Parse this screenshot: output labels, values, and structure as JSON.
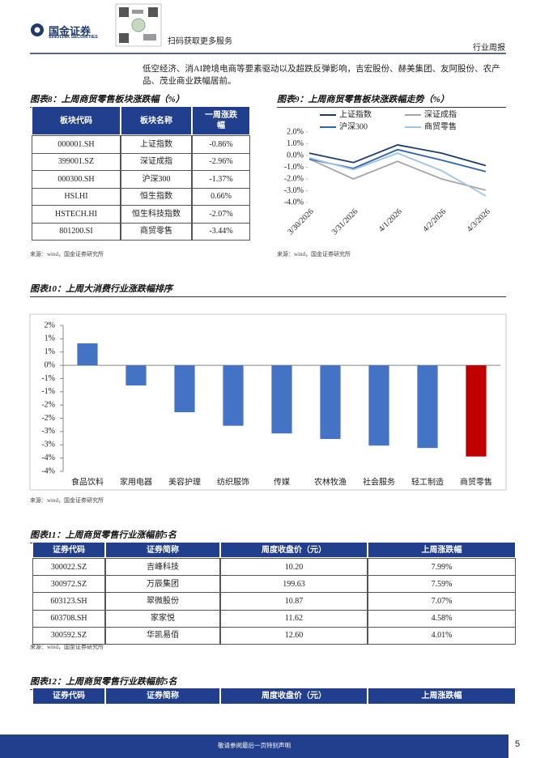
{
  "header": {
    "logo_cn": "国金证券",
    "logo_en": "SINOLINK SECURITIES",
    "qr_caption": "扫码获取更多服务",
    "report_type": "行业周报"
  },
  "intro": "低空经济、消AI跨境电商等要素驱动以及超跌反弹影响，吉宏股份、赫美集团、友阿股份、农产品、茂业商业跌幅居前。",
  "table8": {
    "title": "图表8：上周商贸零售板块涨跌幅（%）",
    "columns": [
      "板块代码",
      "板块名称",
      "一周涨跌幅"
    ],
    "rows": [
      [
        "000001.SH",
        "上证指数",
        "-0.86%"
      ],
      [
        "399001.SZ",
        "深证成指",
        "-2.96%"
      ],
      [
        "000300.SH",
        "沪深300",
        "-1.37%"
      ],
      [
        "HSI.HI",
        "恒生指数",
        "0.66%"
      ],
      [
        "HSTECH.HI",
        "恒生科技指数",
        "-2.07%"
      ],
      [
        "801200.SI",
        "商贸零售",
        "-3.44%"
      ]
    ],
    "source": "来源：wind，国金证券研究所"
  },
  "chart_data": [
    {
      "type": "line",
      "title": "图表9：上周商贸零售板块涨跌幅走势（%）",
      "categories": [
        "3/30/2026",
        "3/31/2026",
        "4/1/2026",
        "4/2/2026",
        "4/3/2026"
      ],
      "series": [
        {
          "name": "上证指数",
          "color": "#1f3a6e",
          "values": [
            0.2,
            -0.6,
            0.9,
            0.2,
            -0.86
          ]
        },
        {
          "name": "深证成指",
          "color": "#a6a6a6",
          "values": [
            -0.3,
            -2.0,
            -0.5,
            -2.0,
            -2.96
          ]
        },
        {
          "name": "沪深300",
          "color": "#2f62b0",
          "values": [
            -0.3,
            -1.1,
            0.5,
            -0.4,
            -1.37
          ]
        },
        {
          "name": "商贸零售",
          "color": "#9dc3e6",
          "values": [
            -0.2,
            -1.2,
            0.2,
            -1.3,
            -3.44
          ]
        }
      ],
      "ylim": [
        -4,
        2
      ],
      "yticks": [
        {
          "value": 2,
          "label": "2.0%"
        },
        {
          "value": 1,
          "label": "1.0%"
        },
        {
          "value": 0,
          "label": "0.0%"
        },
        {
          "value": -1,
          "label": "-1.0%"
        },
        {
          "value": -2,
          "label": "-2.0%"
        },
        {
          "value": -3,
          "label": "-3.0%"
        },
        {
          "value": -4,
          "label": "-4.0%"
        }
      ],
      "legend": "top",
      "source": "来源：wind，国金证券研究所"
    },
    {
      "type": "bar",
      "title": "图表10：上周大消费行业涨跌幅排序",
      "categories": [
        "食品饮料",
        "家用电器",
        "美容护理",
        "纺织服饰",
        "传媒",
        "农林牧渔",
        "社会服务",
        "轻工制造",
        "商贸零售"
      ],
      "values": [
        0.83,
        -0.76,
        -1.77,
        -2.28,
        -2.57,
        -2.78,
        -3.03,
        -3.12,
        -3.44
      ],
      "colors": [
        "#4472c4",
        "#4472c4",
        "#4472c4",
        "#4472c4",
        "#4472c4",
        "#4472c4",
        "#4472c4",
        "#4472c4",
        "#c00000"
      ],
      "ylim": [
        -4,
        1.5
      ],
      "yticks": [
        {
          "value": 1.5,
          "label": "2%"
        },
        {
          "value": 1,
          "label": "1%"
        },
        {
          "value": 0.5,
          "label": "1%"
        },
        {
          "value": 0,
          "label": "0%"
        },
        {
          "value": -0.5,
          "label": "-1%"
        },
        {
          "value": -1,
          "label": "-1%"
        },
        {
          "value": -1.5,
          "label": "-2%"
        },
        {
          "value": -2,
          "label": "-2%"
        },
        {
          "value": -2.5,
          "label": "-3%"
        },
        {
          "value": -3,
          "label": "-3%"
        },
        {
          "value": -3.5,
          "label": "-4%"
        },
        {
          "value": -4,
          "label": "-4%"
        }
      ],
      "source": "来源：wind，国金证券研究所"
    }
  ],
  "table11": {
    "title": "图表11：上周商贸零售行业涨幅前5名",
    "columns": [
      "证券代码",
      "证券简称",
      "周度收盘价（元）",
      "上周涨跌幅"
    ],
    "rows": [
      [
        "300022.SZ",
        "吉峰科技",
        "10.20",
        "7.99%"
      ],
      [
        "300972.SZ",
        "万辰集团",
        "199.63",
        "7.59%"
      ],
      [
        "603123.SH",
        "翠微股份",
        "10.87",
        "7.07%"
      ],
      [
        "603708.SH",
        "家家悦",
        "11.62",
        "4.58%"
      ],
      [
        "300592.SZ",
        "华凯易佰",
        "12.60",
        "4.01%"
      ]
    ],
    "source": "来源：wind，国金证券研究所"
  },
  "table12": {
    "title": "图表12：上周商贸零售行业跌幅前5名",
    "columns": [
      "证券代码",
      "证券简称",
      "周度收盘价（元）",
      "上周涨跌幅"
    ]
  },
  "footer": {
    "disclaimer": "敬请参阅最后一页特别声明",
    "page": "5"
  }
}
